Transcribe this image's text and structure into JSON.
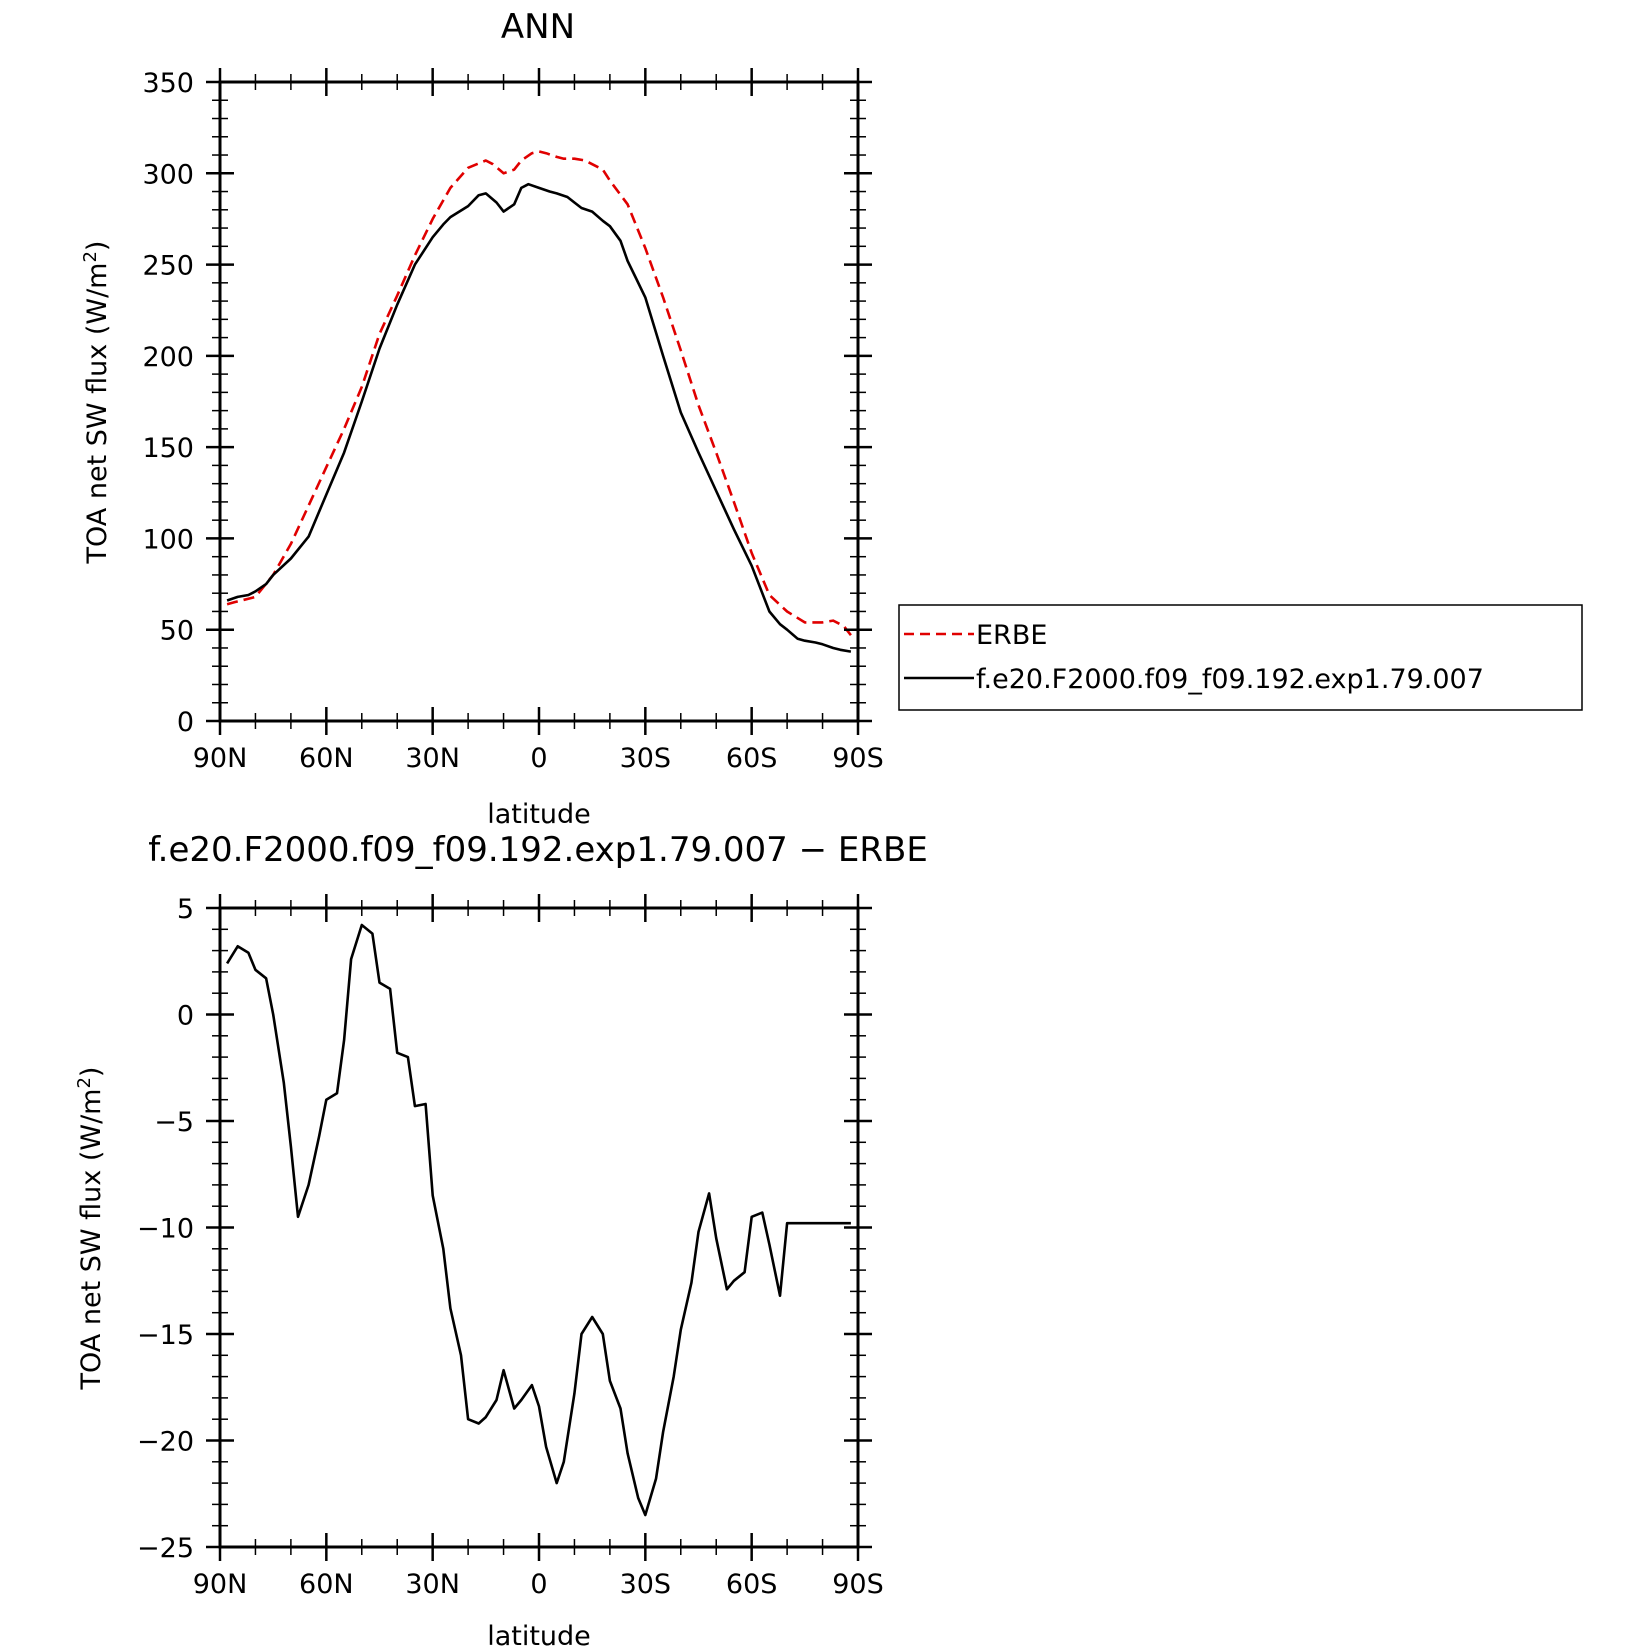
{
  "chart_data": [
    {
      "type": "line",
      "title": "ANN",
      "xlabel": "latitude",
      "ylabel_main": "TOA net SW flux (W/m",
      "ylabel_sup": "2",
      "ylabel_close": ")",
      "xlim": [
        90,
        -90
      ],
      "ylim": [
        0,
        350
      ],
      "xticks": [
        90,
        60,
        30,
        0,
        -30,
        -60,
        -90
      ],
      "xtick_labels": [
        "90N",
        "60N",
        "30N",
        "0",
        "30S",
        "60S",
        "90S"
      ],
      "yticks": [
        0,
        50,
        100,
        150,
        200,
        250,
        300,
        350
      ],
      "ytick_labels": [
        "0",
        "50",
        "100",
        "150",
        "200",
        "250",
        "300",
        "350"
      ],
      "legend_position": "right",
      "series": [
        {
          "name": "ERBE",
          "color": "#e00000",
          "dash": true,
          "x": [
            88,
            86,
            84,
            82,
            80,
            75,
            70,
            65,
            60,
            55,
            50,
            45,
            40,
            35,
            30,
            25,
            20,
            15,
            13,
            10,
            7,
            5,
            2,
            0,
            -2,
            -5,
            -7,
            -10,
            -13,
            -15,
            -18,
            -20,
            -25,
            -30,
            -35,
            -40,
            -45,
            -50,
            -55,
            -60,
            -65,
            -70,
            -75,
            -80,
            -83,
            -86,
            -88
          ],
          "values": [
            64,
            65,
            66,
            67,
            68,
            80,
            97,
            118,
            139,
            160,
            183,
            212,
            233,
            255,
            275,
            292,
            303,
            307,
            305,
            300,
            302,
            307,
            311,
            312,
            311,
            309,
            308,
            308,
            307,
            305,
            302,
            296,
            283,
            259,
            232,
            203,
            173,
            147,
            120,
            92,
            69,
            60,
            54,
            54,
            55,
            52,
            47
          ]
        },
        {
          "name": "f.e20.F2000.f09_f09.192.exp1.79.007",
          "color": "#000000",
          "dash": false,
          "x": [
            88,
            85,
            82,
            80,
            77,
            75,
            70,
            65,
            60,
            55,
            50,
            45,
            40,
            35,
            30,
            27,
            25,
            20,
            17,
            15,
            12,
            10,
            7,
            5,
            3,
            0,
            -3,
            -5,
            -8,
            -10,
            -12,
            -15,
            -18,
            -20,
            -23,
            -25,
            -27,
            -30,
            -35,
            -40,
            -45,
            -50,
            -55,
            -60,
            -63,
            -65,
            -68,
            -70,
            -73,
            -75,
            -78,
            -80,
            -83,
            -85,
            -88
          ],
          "values": [
            66,
            68,
            69,
            71,
            75,
            80,
            89,
            101,
            124,
            147,
            175,
            204,
            228,
            250,
            265,
            272,
            276,
            282,
            288,
            289,
            284,
            279,
            283,
            292,
            294,
            292,
            290,
            289,
            287,
            284,
            281,
            279,
            274,
            271,
            263,
            252,
            244,
            232,
            200,
            169,
            147,
            126,
            105,
            85,
            70,
            60,
            53,
            50,
            45,
            44,
            43,
            42,
            40,
            39,
            38
          ]
        }
      ]
    },
    {
      "type": "line",
      "title": "f.e20.F2000.f09_f09.192.exp1.79.007 − ERBE",
      "xlabel": "latitude",
      "ylabel_main": "TOA net SW flux (W/m",
      "ylabel_sup": "2",
      "ylabel_close": ")",
      "xlim": [
        90,
        -90
      ],
      "ylim": [
        -25,
        5
      ],
      "xticks": [
        90,
        60,
        30,
        0,
        -30,
        -60,
        -90
      ],
      "xtick_labels": [
        "90N",
        "60N",
        "30N",
        "0",
        "30S",
        "60S",
        "90S"
      ],
      "yticks": [
        5,
        0,
        -5,
        -10,
        -15,
        -20,
        -25
      ],
      "ytick_labels": [
        "5",
        "0",
        "−5",
        "−10",
        "−15",
        "−20",
        "−25"
      ],
      "series": [
        {
          "color": "#000000",
          "dash": false,
          "x": [
            88,
            85,
            82,
            80,
            77,
            75,
            72,
            70,
            68,
            65,
            62,
            60,
            57,
            55,
            53,
            50,
            47,
            45,
            42,
            40,
            37,
            35,
            32,
            30,
            27,
            25,
            22,
            20,
            17,
            15,
            12,
            10,
            7,
            5,
            2,
            0,
            -2,
            -5,
            -7,
            -10,
            -12,
            -15,
            -18,
            -20,
            -23,
            -25,
            -28,
            -30,
            -33,
            -35,
            -38,
            -40,
            -43,
            -45,
            -48,
            -50,
            -53,
            -55,
            -58,
            -60,
            -63,
            -65,
            -68,
            -70,
            -73,
            -75,
            -78,
            -80,
            -83,
            -86,
            -88
          ],
          "values": [
            2.4,
            3.2,
            2.9,
            2.1,
            1.7,
            0.0,
            -3.2,
            -6.2,
            -9.5,
            -8.0,
            -5.7,
            -4.0,
            -3.7,
            -1.2,
            2.6,
            4.2,
            3.8,
            1.5,
            1.2,
            -1.8,
            -2.0,
            -4.3,
            -4.2,
            -8.5,
            -11.0,
            -13.8,
            -16.0,
            -19.0,
            -19.2,
            -18.9,
            -18.1,
            -16.7,
            -18.5,
            -18.1,
            -17.4,
            -18.4,
            -20.3,
            -22.0,
            -21.0,
            -17.8,
            -15.0,
            -14.2,
            -15.0,
            -17.2,
            -18.5,
            -20.6,
            -22.7,
            -23.5,
            -21.8,
            -19.6,
            -17.0,
            -14.8,
            -12.6,
            -10.2,
            -8.4,
            -10.5,
            -12.9,
            -12.5,
            -12.1,
            -9.5,
            -9.3,
            -10.8,
            -13.2,
            -9.8,
            -9.8,
            -9.8,
            -9.8,
            -9.8,
            -9.8,
            -9.8,
            -9.8
          ]
        }
      ]
    }
  ]
}
